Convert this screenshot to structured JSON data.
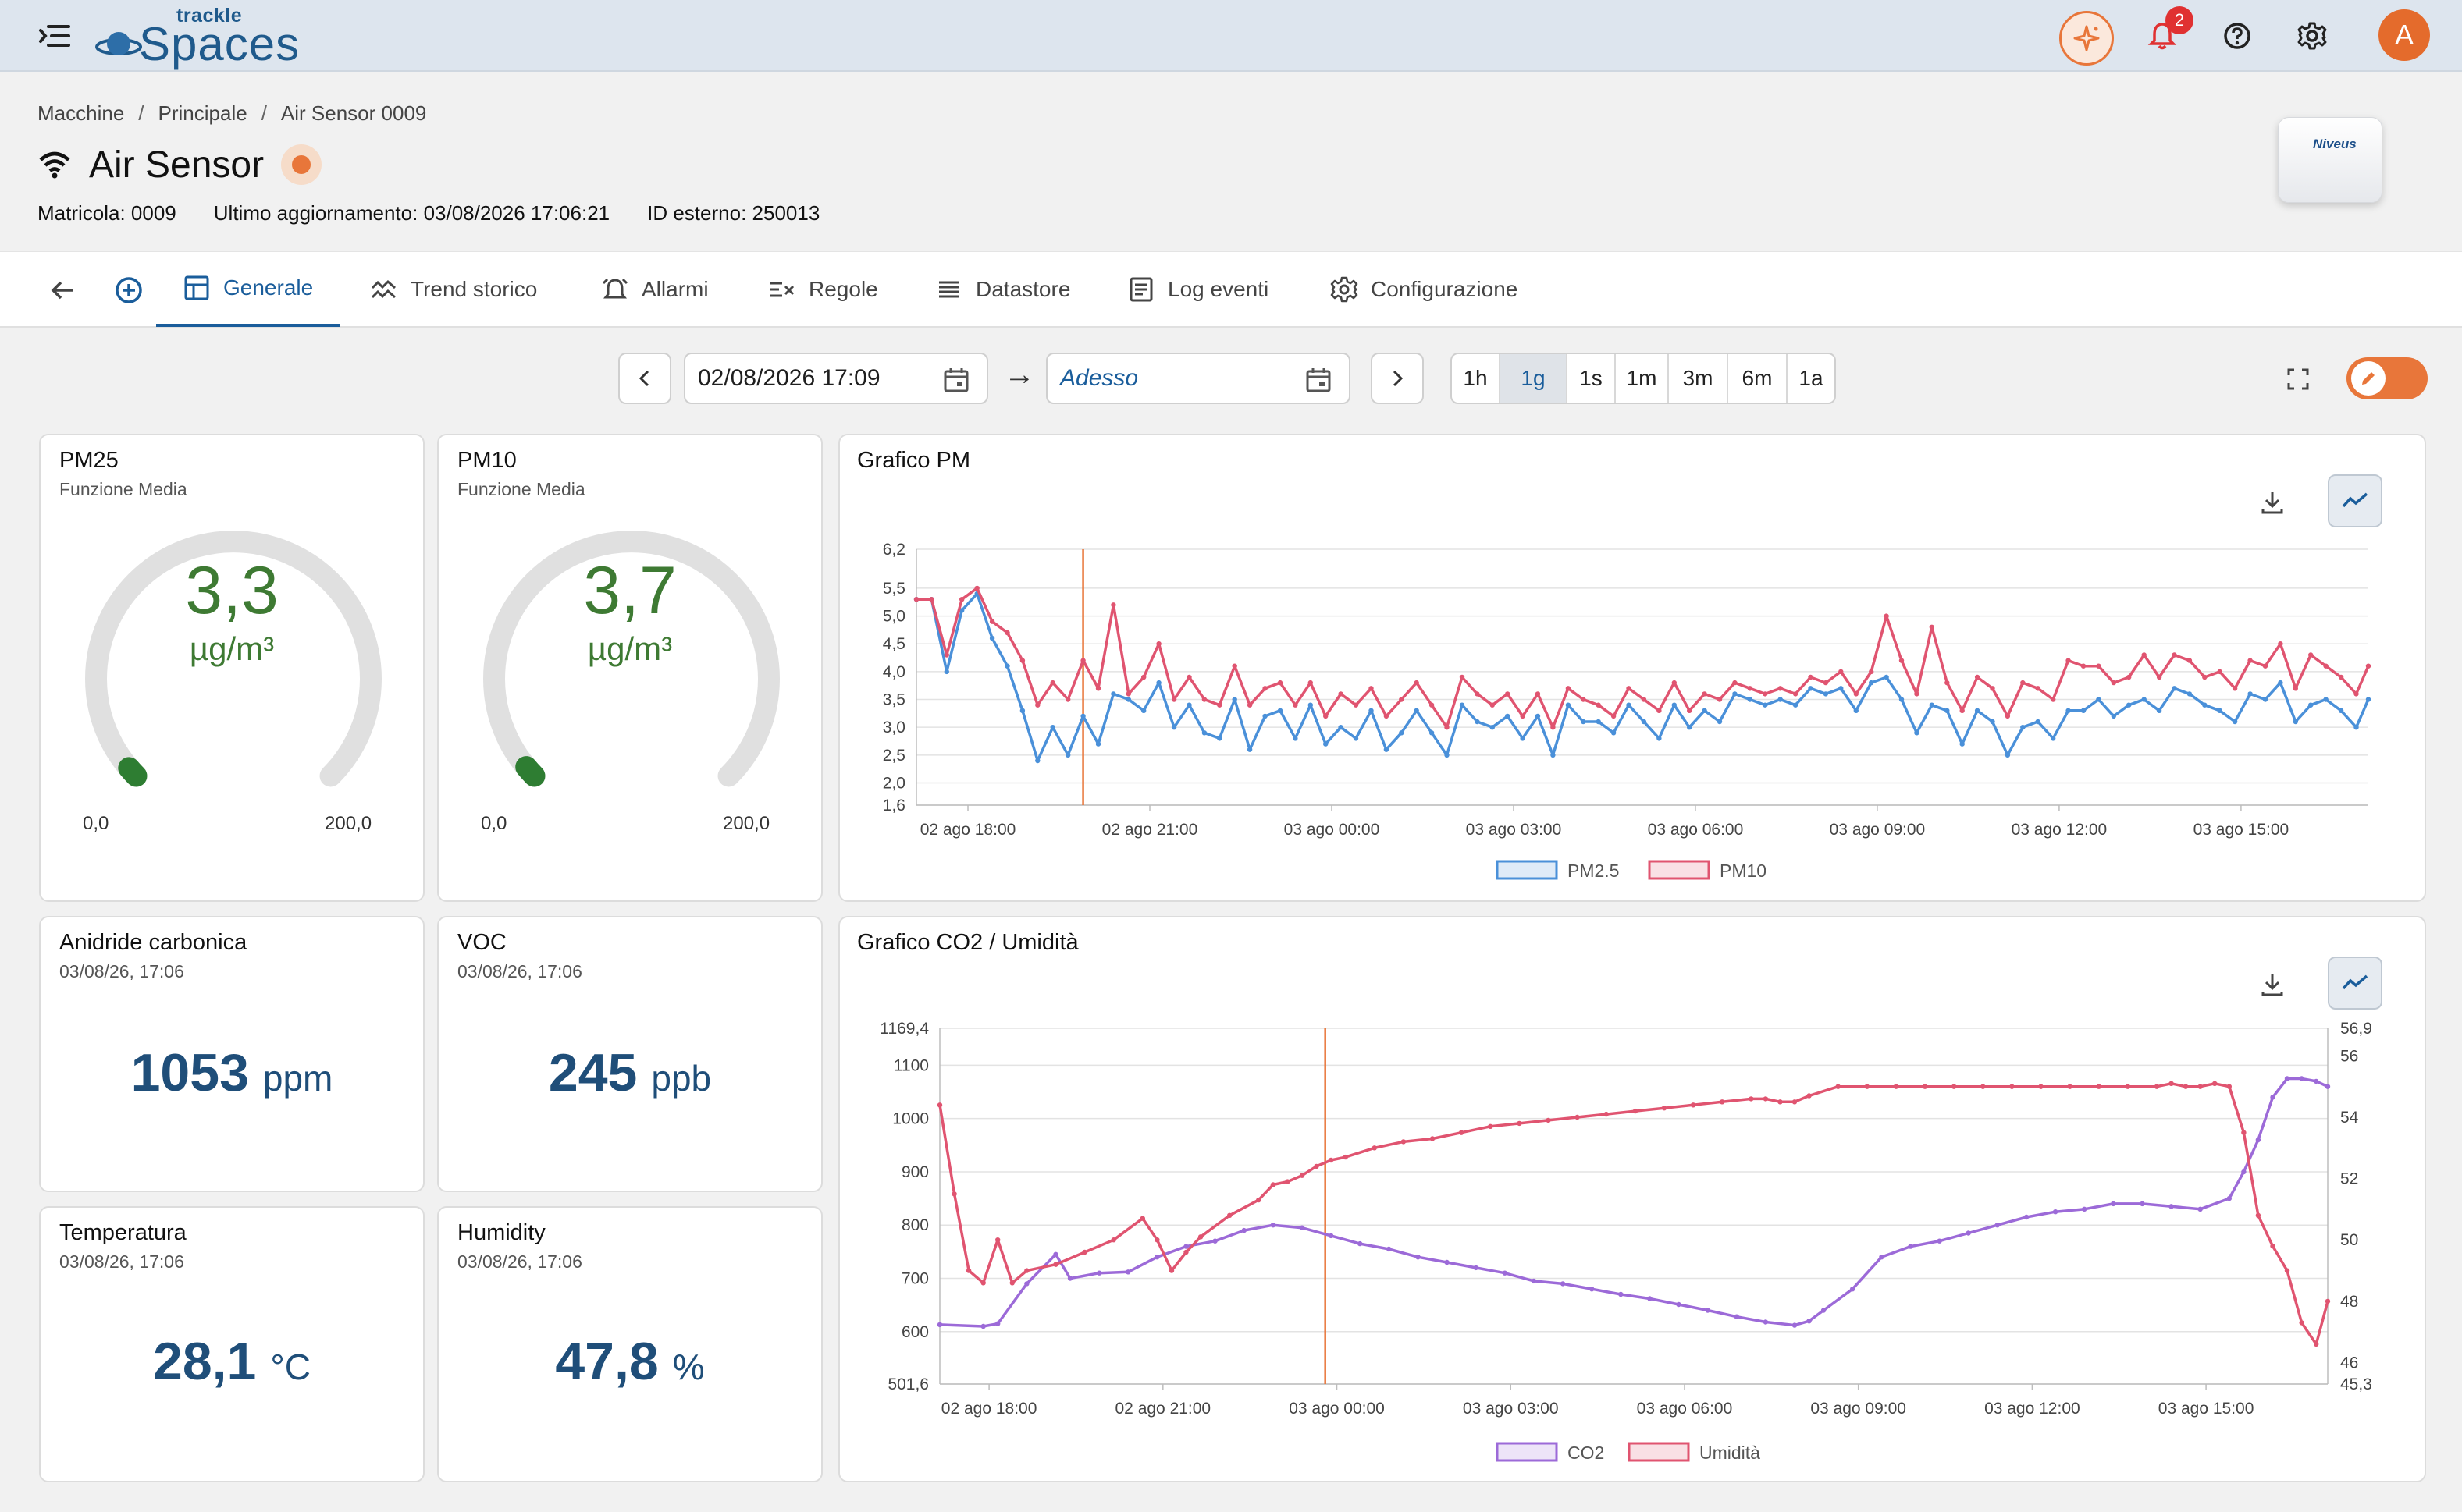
{
  "app": {
    "logo_top": "trackle",
    "logo_main": "Spaces",
    "notification_count": "2",
    "avatar_letter": "A"
  },
  "breadcrumb": [
    "Macchine",
    "Principale",
    "Air Sensor 0009"
  ],
  "device": {
    "title": "Air Sensor",
    "serial": "Matricola: 0009",
    "last_update": "Ultimo aggiornamento: 03/08/2026 17:06:21",
    "external_id": "ID esterno: 250013",
    "image_brand": "Niveus",
    "status_color": "#e8763a"
  },
  "tabs": [
    {
      "label": "Generale",
      "icon": "dashboard-icon",
      "active": true
    },
    {
      "label": "Trend storico",
      "icon": "trend-icon",
      "active": false
    },
    {
      "label": "Allarmi",
      "icon": "alarm-icon",
      "active": false
    },
    {
      "label": "Regole",
      "icon": "rules-icon",
      "active": false
    },
    {
      "label": "Datastore",
      "icon": "list-icon",
      "active": false
    },
    {
      "label": "Log eventi",
      "icon": "log-icon",
      "active": false
    },
    {
      "label": "Configurazione",
      "icon": "gear-icon",
      "active": false
    }
  ],
  "date_range": {
    "from": "02/08/2026 17:09",
    "arrow": "→",
    "to_placeholder": "Adesso",
    "ranges": [
      "1h",
      "1g",
      "1s",
      "1m",
      "3m",
      "6m",
      "1a"
    ],
    "selected": "1g"
  },
  "cards": {
    "pm25": {
      "title": "PM25",
      "subtitle": "Funzione Media",
      "value": "3,3",
      "unit": "µg/m³",
      "min": "0,0",
      "max": "200,0",
      "level": 0.0165
    },
    "pm10": {
      "title": "PM10",
      "subtitle": "Funzione Media",
      "value": "3,7",
      "unit": "µg/m³",
      "min": "0,0",
      "max": "200,0",
      "level": 0.0185
    },
    "co2": {
      "title": "Anidride carbonica",
      "subtitle": "03/08/26, 17:06",
      "value": "1053",
      "unit": "ppm"
    },
    "voc": {
      "title": "VOC",
      "subtitle": "03/08/26, 17:06",
      "value": "245",
      "unit": "ppb"
    },
    "temp": {
      "title": "Temperatura",
      "subtitle": "03/08/26, 17:06",
      "value": "28,1",
      "unit": "°C"
    },
    "hum": {
      "title": "Humidity",
      "subtitle": "03/08/26, 17:06",
      "value": "47,8",
      "unit": "%"
    }
  },
  "colors": {
    "accent": "#1a5d9b",
    "orange": "#e8763a",
    "green": "#3e7a33",
    "value_blue": "#1f4e79",
    "series_blue": "#4a90d9",
    "series_red": "#e05470",
    "series_purple": "#9c6ad8"
  },
  "chart_data": [
    {
      "type": "line",
      "title": "Grafico PM",
      "ylim": [
        1.6,
        6.2
      ],
      "yticks": [
        "6,2",
        "5,5",
        "5,0",
        "4,5",
        "4,0",
        "3,5",
        "3,0",
        "2,5",
        "2,0",
        "1,6"
      ],
      "ytick_values": [
        6.2,
        5.5,
        5.0,
        4.5,
        4.0,
        3.5,
        3.0,
        2.5,
        2.0,
        1.6
      ],
      "xticks": [
        "02 ago 18:00",
        "02 ago 21:00",
        "03 ago 00:00",
        "03 ago 03:00",
        "03 ago 06:00",
        "03 ago 09:00",
        "03 ago 12:00",
        "03 ago 15:00"
      ],
      "x_range_hours": [
        17.15,
        41.1
      ],
      "xtick_hours": [
        18,
        21,
        24,
        27,
        30,
        33,
        36,
        39
      ],
      "marker_hour": 19.9,
      "series": [
        {
          "name": "PM2.5",
          "color": "#4a90d9",
          "x": [
            17.15,
            17.4,
            17.65,
            17.9,
            18.15,
            18.4,
            18.65,
            18.9,
            19.15,
            19.4,
            19.65,
            19.9,
            20.15,
            20.4,
            20.65,
            20.9,
            21.15,
            21.4,
            21.65,
            21.9,
            22.15,
            22.4,
            22.65,
            22.9,
            23.15,
            23.4,
            23.65,
            23.9,
            24.15,
            24.4,
            24.65,
            24.9,
            25.15,
            25.4,
            25.65,
            25.9,
            26.15,
            26.4,
            26.65,
            26.9,
            27.15,
            27.4,
            27.65,
            27.9,
            28.15,
            28.4,
            28.65,
            28.9,
            29.15,
            29.4,
            29.65,
            29.9,
            30.15,
            30.4,
            30.65,
            30.9,
            31.15,
            31.4,
            31.65,
            31.9,
            32.15,
            32.4,
            32.65,
            32.9,
            33.15,
            33.4,
            33.65,
            33.9,
            34.15,
            34.4,
            34.65,
            34.9,
            35.15,
            35.4,
            35.65,
            35.9,
            36.15,
            36.4,
            36.65,
            36.9,
            37.15,
            37.4,
            37.65,
            37.9,
            38.15,
            38.4,
            38.65,
            38.9,
            39.15,
            39.4,
            39.65,
            39.9,
            40.15,
            40.4,
            40.65,
            40.9,
            41.1
          ],
          "values": [
            5.3,
            5.3,
            4.0,
            5.1,
            5.4,
            4.6,
            4.1,
            3.3,
            2.4,
            3.0,
            2.5,
            3.2,
            2.7,
            3.6,
            3.5,
            3.3,
            3.8,
            3.0,
            3.4,
            2.9,
            2.8,
            3.5,
            2.6,
            3.2,
            3.3,
            2.8,
            3.4,
            2.7,
            3.0,
            2.8,
            3.3,
            2.6,
            2.9,
            3.3,
            2.9,
            2.5,
            3.4,
            3.1,
            3.0,
            3.2,
            2.8,
            3.2,
            2.5,
            3.4,
            3.1,
            3.1,
            2.9,
            3.4,
            3.1,
            2.8,
            3.4,
            3.0,
            3.3,
            3.1,
            3.6,
            3.5,
            3.4,
            3.5,
            3.4,
            3.7,
            3.6,
            3.7,
            3.3,
            3.8,
            3.9,
            3.5,
            2.9,
            3.4,
            3.3,
            2.7,
            3.3,
            3.1,
            2.5,
            3.0,
            3.1,
            2.8,
            3.3,
            3.3,
            3.5,
            3.2,
            3.4,
            3.5,
            3.3,
            3.7,
            3.6,
            3.4,
            3.3,
            3.1,
            3.6,
            3.5,
            3.8,
            3.1,
            3.4,
            3.5,
            3.3,
            3.0,
            3.5
          ]
        },
        {
          "name": "PM10",
          "color": "#e05470",
          "x": [
            17.15,
            17.4,
            17.65,
            17.9,
            18.15,
            18.4,
            18.65,
            18.9,
            19.15,
            19.4,
            19.65,
            19.9,
            20.15,
            20.4,
            20.65,
            20.9,
            21.15,
            21.4,
            21.65,
            21.9,
            22.15,
            22.4,
            22.65,
            22.9,
            23.15,
            23.4,
            23.65,
            23.9,
            24.15,
            24.4,
            24.65,
            24.9,
            25.15,
            25.4,
            25.65,
            25.9,
            26.15,
            26.4,
            26.65,
            26.9,
            27.15,
            27.4,
            27.65,
            27.9,
            28.15,
            28.4,
            28.65,
            28.9,
            29.15,
            29.4,
            29.65,
            29.9,
            30.15,
            30.4,
            30.65,
            30.9,
            31.15,
            31.4,
            31.65,
            31.9,
            32.15,
            32.4,
            32.65,
            32.9,
            33.15,
            33.4,
            33.65,
            33.9,
            34.15,
            34.4,
            34.65,
            34.9,
            35.15,
            35.4,
            35.65,
            35.9,
            36.15,
            36.4,
            36.65,
            36.9,
            37.15,
            37.4,
            37.65,
            37.9,
            38.15,
            38.4,
            38.65,
            38.9,
            39.15,
            39.4,
            39.65,
            39.9,
            40.15,
            40.4,
            40.65,
            40.9,
            41.1
          ],
          "values": [
            5.3,
            5.3,
            4.3,
            5.3,
            5.5,
            4.9,
            4.7,
            4.2,
            3.4,
            3.8,
            3.5,
            4.2,
            3.7,
            5.2,
            3.6,
            3.9,
            4.5,
            3.5,
            3.9,
            3.5,
            3.4,
            4.1,
            3.4,
            3.7,
            3.8,
            3.4,
            3.8,
            3.2,
            3.6,
            3.4,
            3.7,
            3.2,
            3.5,
            3.8,
            3.4,
            3.0,
            3.9,
            3.6,
            3.4,
            3.6,
            3.2,
            3.6,
            3.0,
            3.7,
            3.5,
            3.4,
            3.2,
            3.7,
            3.5,
            3.3,
            3.8,
            3.3,
            3.6,
            3.5,
            3.8,
            3.7,
            3.6,
            3.7,
            3.6,
            3.9,
            3.8,
            4.0,
            3.6,
            4.0,
            5.0,
            4.2,
            3.6,
            4.8,
            3.8,
            3.3,
            3.9,
            3.7,
            3.2,
            3.8,
            3.7,
            3.5,
            4.2,
            4.1,
            4.1,
            3.8,
            3.9,
            4.3,
            3.9,
            4.3,
            4.2,
            3.9,
            4.0,
            3.7,
            4.2,
            4.1,
            4.5,
            3.7,
            4.3,
            4.1,
            3.9,
            3.6,
            4.1
          ]
        }
      ],
      "legend": "bottom"
    },
    {
      "type": "line",
      "title": "Grafico CO2 / Umidità",
      "ylim": [
        501.6,
        1169.4
      ],
      "yticks": [
        "1169,4",
        "1100",
        "1000",
        "900",
        "800",
        "700",
        "600",
        "501,6"
      ],
      "ytick_values": [
        1169.4,
        1100,
        1000,
        900,
        800,
        700,
        600,
        501.6
      ],
      "y2lim": [
        45.3,
        56.9
      ],
      "y2ticks": [
        "56,9",
        "56",
        "54",
        "52",
        "50",
        "48",
        "46",
        "45,3"
      ],
      "y2tick_values": [
        56.9,
        56,
        54,
        52,
        50,
        48,
        46,
        45.3
      ],
      "xticks": [
        "02 ago 18:00",
        "02 ago 21:00",
        "03 ago 00:00",
        "03 ago 03:00",
        "03 ago 06:00",
        "03 ago 09:00",
        "03 ago 12:00",
        "03 ago 15:00"
      ],
      "x_range_hours": [
        17.15,
        41.1
      ],
      "xtick_hours": [
        18,
        21,
        24,
        27,
        30,
        33,
        36,
        39
      ],
      "marker_hour": 23.8,
      "series": [
        {
          "name": "CO2",
          "color": "#9c6ad8",
          "axis": "left",
          "x": [
            17.15,
            17.9,
            18.15,
            18.65,
            19.15,
            19.4,
            19.9,
            20.4,
            20.9,
            21.4,
            21.9,
            22.4,
            22.9,
            23.4,
            23.9,
            24.4,
            24.9,
            25.4,
            25.9,
            26.4,
            26.9,
            27.4,
            27.9,
            28.4,
            28.9,
            29.4,
            29.9,
            30.4,
            30.9,
            31.4,
            31.9,
            32.15,
            32.4,
            32.9,
            33.4,
            33.9,
            34.4,
            34.9,
            35.4,
            35.9,
            36.4,
            36.9,
            37.4,
            37.9,
            38.4,
            38.9,
            39.4,
            39.65,
            39.9,
            40.15,
            40.4,
            40.65,
            40.9,
            41.1
          ],
          "values": [
            613,
            610,
            615,
            690,
            745,
            700,
            710,
            712,
            740,
            760,
            770,
            790,
            800,
            795,
            780,
            765,
            755,
            740,
            730,
            720,
            710,
            695,
            690,
            680,
            670,
            662,
            651,
            640,
            628,
            618,
            612,
            620,
            640,
            680,
            740,
            760,
            770,
            785,
            800,
            815,
            825,
            830,
            840,
            840,
            835,
            830,
            850,
            900,
            960,
            1040,
            1075,
            1075,
            1070,
            1060
          ]
        },
        {
          "name": "Umidità",
          "color": "#e05470",
          "axis": "right",
          "x": [
            17.15,
            17.4,
            17.65,
            17.9,
            18.15,
            18.4,
            18.65,
            19.15,
            19.65,
            20.15,
            20.65,
            20.9,
            21.15,
            21.4,
            21.65,
            22.15,
            22.65,
            22.9,
            23.15,
            23.4,
            23.65,
            23.9,
            24.15,
            24.65,
            25.15,
            25.65,
            26.15,
            26.65,
            27.15,
            27.65,
            28.15,
            28.65,
            29.15,
            29.65,
            30.15,
            30.65,
            31.15,
            31.4,
            31.65,
            31.9,
            32.15,
            32.65,
            33.15,
            33.65,
            34.15,
            34.65,
            35.15,
            35.65,
            36.15,
            36.65,
            37.15,
            37.65,
            38.15,
            38.4,
            38.65,
            38.9,
            39.15,
            39.4,
            39.65,
            39.9,
            40.15,
            40.4,
            40.65,
            40.9,
            41.1
          ],
          "values": [
            54.4,
            51.5,
            49.0,
            48.6,
            50.0,
            48.6,
            49.0,
            49.2,
            49.6,
            50.0,
            50.7,
            50.0,
            49.0,
            49.6,
            50.1,
            50.8,
            51.3,
            51.8,
            51.9,
            52.1,
            52.4,
            52.6,
            52.7,
            53.0,
            53.2,
            53.3,
            53.5,
            53.7,
            53.8,
            53.9,
            54.0,
            54.1,
            54.2,
            54.3,
            54.4,
            54.5,
            54.6,
            54.6,
            54.5,
            54.5,
            54.7,
            55.0,
            55.0,
            55.0,
            55.0,
            55.0,
            55.0,
            55.0,
            55.0,
            55.0,
            55.0,
            55.0,
            55.0,
            55.1,
            55.0,
            55.0,
            55.1,
            55.0,
            53.5,
            50.8,
            49.8,
            49.0,
            47.3,
            46.6,
            48.0
          ]
        }
      ],
      "legend": "bottom"
    }
  ]
}
